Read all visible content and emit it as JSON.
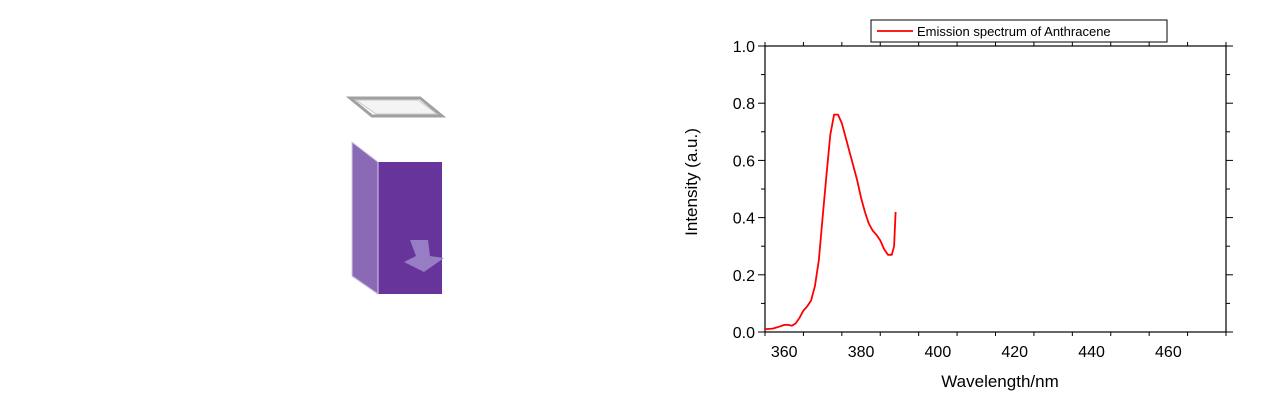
{
  "illustration": {
    "name": "cuvette",
    "colors": {
      "front": "#66349a",
      "side": "#8a6ab5",
      "lid": "#a0a0a0",
      "arrow": "#9a82c6"
    }
  },
  "chart_data": {
    "type": "line",
    "title": "",
    "xlabel": "Wavelength/nm",
    "ylabel": "Intensity (a.u.)",
    "xlim": [
      355,
      475
    ],
    "ylim": [
      0.0,
      1.0
    ],
    "xticks": [
      360,
      380,
      400,
      420,
      440,
      460
    ],
    "xtick_labels": [
      "360",
      "380",
      "400",
      "420",
      "440",
      "460"
    ],
    "yticks": [
      0.0,
      0.2,
      0.4,
      0.6,
      0.8,
      1.0
    ],
    "ytick_labels": [
      "0.0",
      "0.2",
      "0.4",
      "0.6",
      "0.8",
      "1.0"
    ],
    "grid": false,
    "legend_position": "top-right",
    "series": [
      {
        "name": "Emission spectrum of Anthracene",
        "color": "#ff0000",
        "x": [
          355,
          357,
          359,
          360,
          361,
          362,
          363,
          364,
          365,
          366,
          367,
          368,
          369,
          370,
          371,
          372,
          373,
          374,
          375,
          376,
          377,
          378,
          379,
          380,
          381,
          382,
          383,
          384,
          385,
          386,
          387,
          388,
          388.6,
          389
        ],
        "y": [
          0.01,
          0.012,
          0.02,
          0.025,
          0.025,
          0.022,
          0.03,
          0.05,
          0.075,
          0.09,
          0.11,
          0.16,
          0.25,
          0.4,
          0.55,
          0.69,
          0.76,
          0.76,
          0.73,
          0.68,
          0.63,
          0.58,
          0.53,
          0.47,
          0.42,
          0.38,
          0.355,
          0.34,
          0.32,
          0.29,
          0.27,
          0.27,
          0.3,
          0.42
        ]
      }
    ]
  }
}
